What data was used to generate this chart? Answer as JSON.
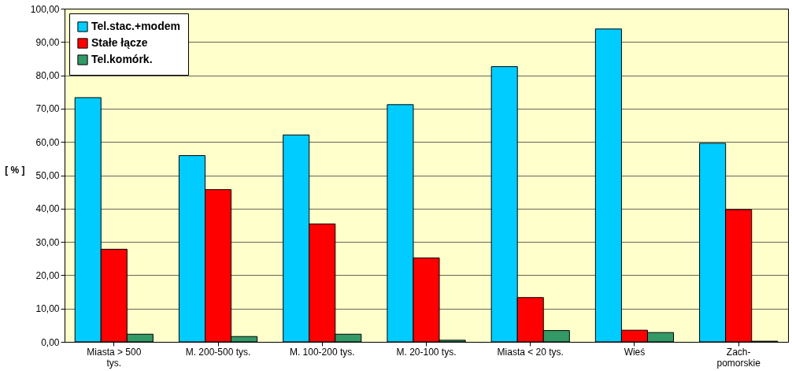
{
  "chart_data": {
    "type": "bar",
    "ylabel": "[ % ]",
    "categories": [
      "Miasta > 500\ntys.",
      "M. 200-500 tys.",
      "M. 100-200 tys.",
      "M.  20-100 tys.",
      "Miasta < 20 tys.",
      "Wieś",
      "Zach-\npomorskie"
    ],
    "series": [
      {
        "name": "Tel.stac.+modem",
        "color": "#00ccff",
        "values": [
          73.3,
          55.9,
          62.1,
          71.2,
          82.6,
          93.9,
          59.6
        ]
      },
      {
        "name": "Stałe łącze",
        "color": "#ff0000",
        "values": [
          27.8,
          45.7,
          35.4,
          25.2,
          13.3,
          3.5,
          39.7
        ]
      },
      {
        "name": "Tel.komórk.",
        "color": "#339966",
        "values": [
          2.3,
          1.6,
          2.3,
          0.5,
          3.4,
          2.8,
          0.2
        ]
      }
    ],
    "ylim": [
      0,
      100
    ],
    "yticks": [
      {
        "value": 0,
        "label": "0,00"
      },
      {
        "value": 10,
        "label": "10,00"
      },
      {
        "value": 20,
        "label": "20,00"
      },
      {
        "value": 30,
        "label": "30,00"
      },
      {
        "value": 40,
        "label": "40,00"
      },
      {
        "value": 50,
        "label": "50,00"
      },
      {
        "value": 60,
        "label": "60,00"
      },
      {
        "value": 70,
        "label": "70,00"
      },
      {
        "value": 80,
        "label": "80,00"
      },
      {
        "value": 90,
        "label": "90,00"
      },
      {
        "value": 100,
        "label": "100,00"
      }
    ],
    "grid": "y",
    "legend": "top left"
  }
}
